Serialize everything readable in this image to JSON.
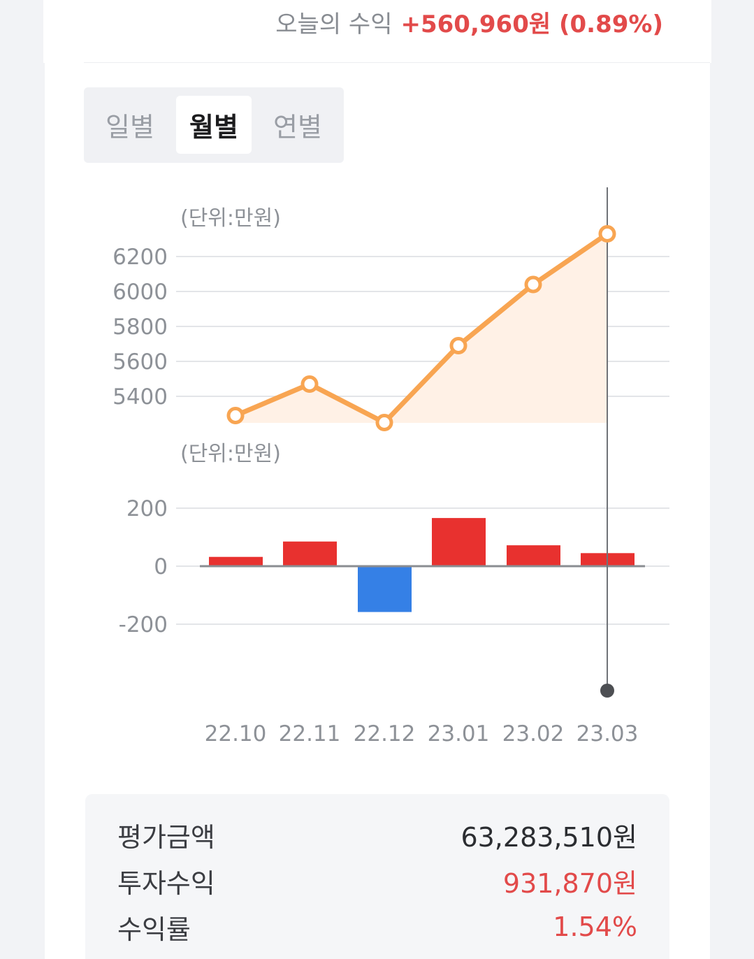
{
  "header": {
    "today_label": "오늘의 수익",
    "today_value": "+560,960원 (0.89%)"
  },
  "tabs": [
    {
      "label": "일별",
      "active": false
    },
    {
      "label": "월별",
      "active": true
    },
    {
      "label": "연별",
      "active": false
    }
  ],
  "colors": {
    "accent_red": "#e8312f",
    "accent_blue": "#3580e6",
    "line_orange": "#f8a552",
    "positive_text": "#e24a4a"
  },
  "chart_data": [
    {
      "type": "line",
      "unit_label": "(단위:만원)",
      "x": [
        "22.10",
        "22.11",
        "22.12",
        "23.01",
        "23.02",
        "23.03"
      ],
      "values": [
        5290,
        5470,
        5250,
        5690,
        6040,
        6330
      ],
      "y_ticks": [
        "5400",
        "5600",
        "5800",
        "6000",
        "6200"
      ],
      "ylim": [
        5200,
        6400
      ],
      "grid": true,
      "area_fill": true
    },
    {
      "type": "bar",
      "unit_label": "(단위:만원)",
      "categories": [
        "22.10",
        "22.11",
        "22.12",
        "23.01",
        "23.02",
        "23.03"
      ],
      "values": [
        32,
        85,
        -158,
        166,
        72,
        45
      ],
      "y_ticks": [
        "-200",
        "0",
        "200"
      ],
      "ylim": [
        -200,
        200
      ],
      "grid": true
    }
  ],
  "summary": [
    {
      "label": "평가금액",
      "value": "63,283,510원",
      "highlight": false
    },
    {
      "label": "투자수익",
      "value": "931,870원",
      "highlight": true
    },
    {
      "label": "수익률",
      "value": "1.54%",
      "highlight": true
    }
  ]
}
